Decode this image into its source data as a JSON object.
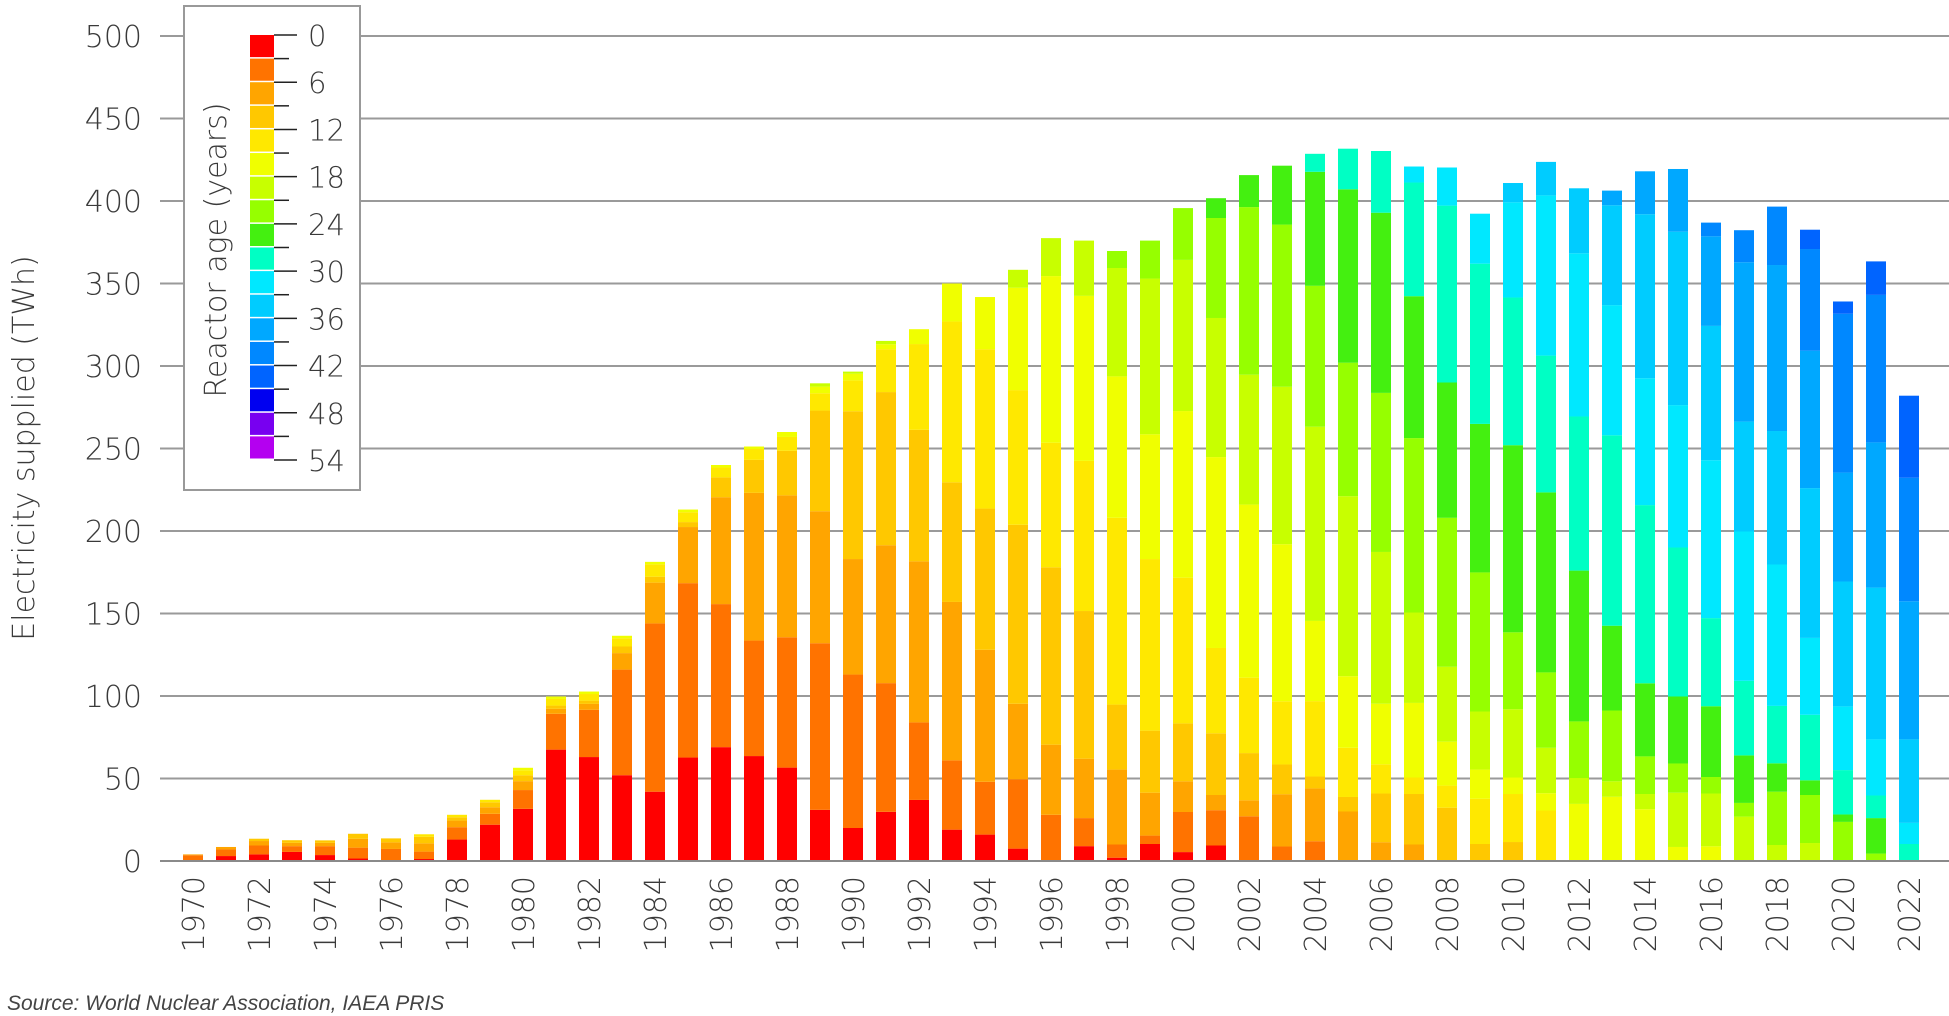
{
  "chart_data": {
    "type": "bar",
    "stacked": true,
    "ylabel": "Electricity supplied (TWh)",
    "xlabel": "",
    "ylim": [
      0,
      500
    ],
    "yticks": [
      0,
      50,
      100,
      150,
      200,
      250,
      300,
      350,
      400,
      450,
      500
    ],
    "grid": true,
    "legend": {
      "title": "Reactor age (years)",
      "placement": "top-left",
      "type": "colorbar",
      "tick_labels": [
        "0",
        "6",
        "12",
        "18",
        "24",
        "30",
        "36",
        "42",
        "48",
        "54"
      ],
      "bins": [
        "0-3",
        "3-6",
        "6-9",
        "9-12",
        "12-15",
        "15-18",
        "18-21",
        "21-24",
        "24-27",
        "27-30",
        "30-33",
        "33-36",
        "36-39",
        "39-42",
        "42-45",
        "45-48",
        "48-51",
        "51-54"
      ],
      "colors": [
        "#ff0000",
        "#ff7300",
        "#ffa500",
        "#ffc800",
        "#ffe800",
        "#f0ff00",
        "#c8ff00",
        "#96ff00",
        "#44f010",
        "#00ffc4",
        "#00e8ff",
        "#00ccff",
        "#00a8ff",
        "#0088ff",
        "#0064ff",
        "#0000f0",
        "#7800f0",
        "#b400f0"
      ]
    },
    "categories": [
      1970,
      1971,
      1972,
      1973,
      1974,
      1975,
      1976,
      1977,
      1978,
      1979,
      1980,
      1981,
      1982,
      1983,
      1984,
      1985,
      1986,
      1987,
      1988,
      1989,
      1990,
      1991,
      1992,
      1993,
      1994,
      1995,
      1996,
      1997,
      1998,
      1999,
      2000,
      2001,
      2002,
      2003,
      2004,
      2005,
      2006,
      2007,
      2008,
      2009,
      2010,
      2011,
      2012,
      2013,
      2014,
      2015,
      2016,
      2017,
      2018,
      2019,
      2020,
      2021,
      2022
    ],
    "xtick_labels": [
      "1970",
      "1972",
      "1974",
      "1976",
      "1978",
      "1980",
      "1982",
      "1984",
      "1986",
      "1988",
      "1990",
      "1992",
      "1994",
      "1996",
      "1998",
      "2000",
      "2002",
      "2004",
      "2006",
      "2008",
      "2010",
      "2012",
      "2014",
      "2016",
      "2018",
      "2020",
      "2022"
    ],
    "values_by_age_bin": [
      [
        0,
        3.5,
        0.5
      ],
      [
        3,
        4,
        1.5
      ],
      [
        4,
        5.4,
        2.7,
        1.4
      ],
      [
        5.5,
        3.5,
        2,
        1.6
      ],
      [
        3.6,
        5.4,
        2,
        1.5
      ],
      [
        1.5,
        6.6,
        5.4,
        3
      ],
      [
        0.3,
        7,
        4,
        2.4
      ],
      [
        1.2,
        4.5,
        5,
        4,
        1.5
      ],
      [
        13,
        7.5,
        4,
        2,
        1.5
      ],
      [
        22,
        6.6,
        4,
        3,
        1.5
      ],
      [
        31.6,
        11.4,
        5.4,
        3.6,
        3,
        1.5
      ],
      [
        67.5,
        21.7,
        3,
        2,
        4,
        1.5
      ],
      [
        63,
        28.6,
        3.6,
        2,
        4,
        1.5
      ],
      [
        52,
        64,
        10,
        4,
        5,
        1.5
      ],
      [
        42,
        102,
        24.7,
        3.6,
        7.5,
        1.5
      ],
      [
        62.7,
        105.7,
        34,
        3,
        6,
        1.6
      ],
      [
        69,
        86.7,
        64.8,
        12,
        6,
        1.5
      ],
      [
        63.6,
        70,
        89.5,
        20,
        6.6,
        1.5
      ],
      [
        56.6,
        79,
        86,
        27,
        8.4,
        3
      ],
      [
        31,
        101,
        80,
        61,
        10.5,
        4,
        2
      ],
      [
        20,
        93,
        70,
        89.6,
        18.7,
        4,
        1.3
      ],
      [
        29.8,
        78,
        83.6,
        92.8,
        26,
        3,
        2
      ],
      [
        37,
        47,
        97.6,
        79.7,
        52,
        9
      ],
      [
        19,
        42,
        96,
        72.5,
        97.5,
        23
      ],
      [
        16,
        32,
        80,
        85.6,
        96.6,
        31.6
      ],
      [
        7.5,
        42,
        45.8,
        108.5,
        81.6,
        62,
        10.9
      ],
      [
        0,
        28,
        42.5,
        107.5,
        75.5,
        101,
        23
      ],
      [
        9,
        17,
        36,
        89.5,
        91,
        100,
        33.5
      ],
      [
        2,
        8,
        45.4,
        39.4,
        113.2,
        85.7,
        65.7,
        10.3
      ],
      [
        10.3,
        5.1,
        26,
        37.6,
        104,
        75.6,
        94.4,
        23
      ],
      [
        5.4,
        24.3,
        18.6,
        35.1,
        88.3,
        101,
        91.6,
        31.4
      ],
      [
        9.4,
        21.4,
        9.2,
        37.4,
        51.7,
        115.7,
        84.3,
        60.6,
        12
      ],
      [
        0,
        27.1,
        9.7,
        28.6,
        45.7,
        104.9,
        78.7,
        101.6,
        19.4
      ],
      [
        0,
        8.8,
        31.7,
        18,
        38.3,
        95.2,
        95.4,
        98.3,
        35.7
      ],
      [
        0,
        12,
        32,
        7.2,
        45.7,
        48.6,
        117.7,
        85.4,
        69.1,
        10.9
      ],
      [
        0,
        0,
        30,
        8.8,
        29.8,
        43.4,
        109.1,
        80.9,
        105.1,
        24.6
      ],
      [
        0,
        0,
        11.4,
        29.5,
        17.7,
        36.7,
        92,
        96.4,
        109.2,
        37.4
      ],
      [
        0,
        0,
        10,
        30.6,
        10,
        45.2,
        54.8,
        105.7,
        86,
        68.9,
        9.7
      ],
      [
        0,
        0,
        0,
        32.3,
        13.4,
        26.6,
        45.4,
        90.3,
        82,
        107.2,
        23.1
      ],
      [
        0,
        0,
        0,
        10.3,
        27.4,
        17.7,
        35.2,
        84.3,
        90,
        97.1,
        30.3
      ],
      [
        0,
        0,
        0,
        11.5,
        29.1,
        10,
        41.4,
        46.6,
        113.4,
        89.5,
        57.7,
        11.7
      ],
      [
        0,
        0,
        0,
        0,
        30.6,
        10.5,
        27.5,
        45.7,
        109.1,
        82.9,
        97.1,
        20.3
      ],
      [
        0,
        0,
        0,
        0,
        0,
        34.6,
        15.7,
        34.3,
        91.4,
        93.4,
        98.9,
        39.4
      ],
      [
        0,
        0,
        0,
        0,
        0,
        38.9,
        9.4,
        42.9,
        51.4,
        115.4,
        78.9,
        60.5,
        8.9
      ],
      [
        0,
        0,
        0,
        0,
        0,
        31.4,
        9.2,
        22.8,
        44.3,
        108,
        76.9,
        99.4,
        26
      ],
      [
        0,
        0,
        0,
        0,
        0,
        8.5,
        32.9,
        17.7,
        40.6,
        90.3,
        86.3,
        105.1,
        38
      ],
      [
        0,
        0,
        0,
        0,
        0,
        8.9,
        32,
        10,
        42.9,
        53.4,
        95.7,
        81.4,
        54.3,
        8.3
      ],
      [
        0,
        0,
        0,
        0,
        0,
        0,
        26.9,
        8.3,
        28.8,
        45.2,
        90.5,
        66.6,
        96.6,
        19.4
      ],
      [
        0,
        0,
        0,
        0,
        0,
        0,
        9.7,
        32.3,
        17.2,
        34.8,
        85.7,
        80.9,
        100.6,
        35.4
      ],
      [
        0,
        0,
        0,
        0,
        0,
        0,
        10.9,
        29.1,
        8.9,
        39.7,
        46.6,
        90.8,
        83.2,
        61.7,
        11.7
      ],
      [
        0,
        0,
        0,
        0,
        0,
        0,
        0,
        23.7,
        4.5,
        26.9,
        38.6,
        75.7,
        66,
        96.3,
        7.4
      ],
      [
        0,
        0,
        0,
        0,
        0,
        0,
        0,
        4.5,
        21.5,
        13.7,
        34,
        92,
        88,
        89.4,
        20.3
      ],
      [
        0,
        0,
        0,
        0,
        0,
        0,
        0,
        0,
        0,
        10.3,
        12.8,
        50.6,
        83.7,
        74.9,
        49.7
      ]
    ]
  },
  "source": "Source: World Nuclear Association, IAEA PRIS"
}
